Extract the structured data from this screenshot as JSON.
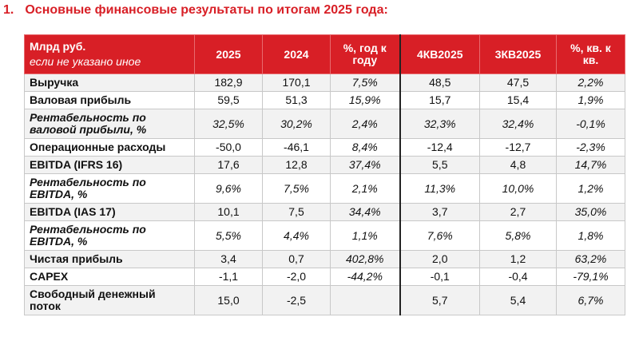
{
  "title": {
    "number": "1.",
    "text": "Основные финансовые результаты по итогам 2025 года:"
  },
  "table": {
    "header_label_line1": "Млрд руб.",
    "header_label_line2": "если не указано иное",
    "columns": [
      "2025",
      "2024",
      "%, год к году",
      "4КВ2025",
      "3КВ2025",
      "%, кв. к кв."
    ],
    "rows": [
      {
        "label": "Выручка",
        "italic": false,
        "cells": [
          "182,9",
          "170,1",
          "7,5%",
          "48,5",
          "47,5",
          "2,2%"
        ]
      },
      {
        "label": "Валовая прибыль",
        "italic": false,
        "cells": [
          "59,5",
          "51,3",
          "15,9%",
          "15,7",
          "15,4",
          "1,9%"
        ]
      },
      {
        "label": "Рентабельность по валовой прибыли, %",
        "italic": true,
        "cells": [
          "32,5%",
          "30,2%",
          "2,4%",
          "32,3%",
          "32,4%",
          "-0,1%"
        ]
      },
      {
        "label": "Операционные расходы",
        "italic": false,
        "cells": [
          "-50,0",
          "-46,1",
          "8,4%",
          "-12,4",
          "-12,7",
          "-2,3%"
        ]
      },
      {
        "label": "EBITDA (IFRS 16)",
        "italic": false,
        "cells": [
          "17,6",
          "12,8",
          "37,4%",
          "5,5",
          "4,8",
          "14,7%"
        ]
      },
      {
        "label": "Рентабельность по EBITDA, %",
        "italic": true,
        "cells": [
          "9,6%",
          "7,5%",
          "2,1%",
          "11,3%",
          "10,0%",
          "1,2%"
        ]
      },
      {
        "label": "EBITDA (IAS 17)",
        "italic": false,
        "cells": [
          "10,1",
          "7,5",
          "34,4%",
          "3,7",
          "2,7",
          "35,0%"
        ]
      },
      {
        "label": "Рентабельность по EBITDA, %",
        "italic": true,
        "cells": [
          "5,5%",
          "4,4%",
          "1,1%",
          "7,6%",
          "5,8%",
          "1,8%"
        ]
      },
      {
        "label": "Чистая прибыль",
        "italic": false,
        "cells": [
          "3,4",
          "0,7",
          "402,8%",
          "2,0",
          "1,2",
          "63,2%"
        ]
      },
      {
        "label": "CAPEX",
        "italic": false,
        "cells": [
          "-1,1",
          "-2,0",
          "-44,2%",
          "-0,1",
          "-0,4",
          "-79,1%"
        ]
      },
      {
        "label": "Свободный денежный поток",
        "italic": false,
        "cells": [
          "15,0",
          "-2,5",
          "",
          "5,7",
          "5,4",
          "6,7%"
        ]
      }
    ]
  },
  "colors": {
    "accent": "#d81f26",
    "row_alt": "#f2f2f2"
  }
}
